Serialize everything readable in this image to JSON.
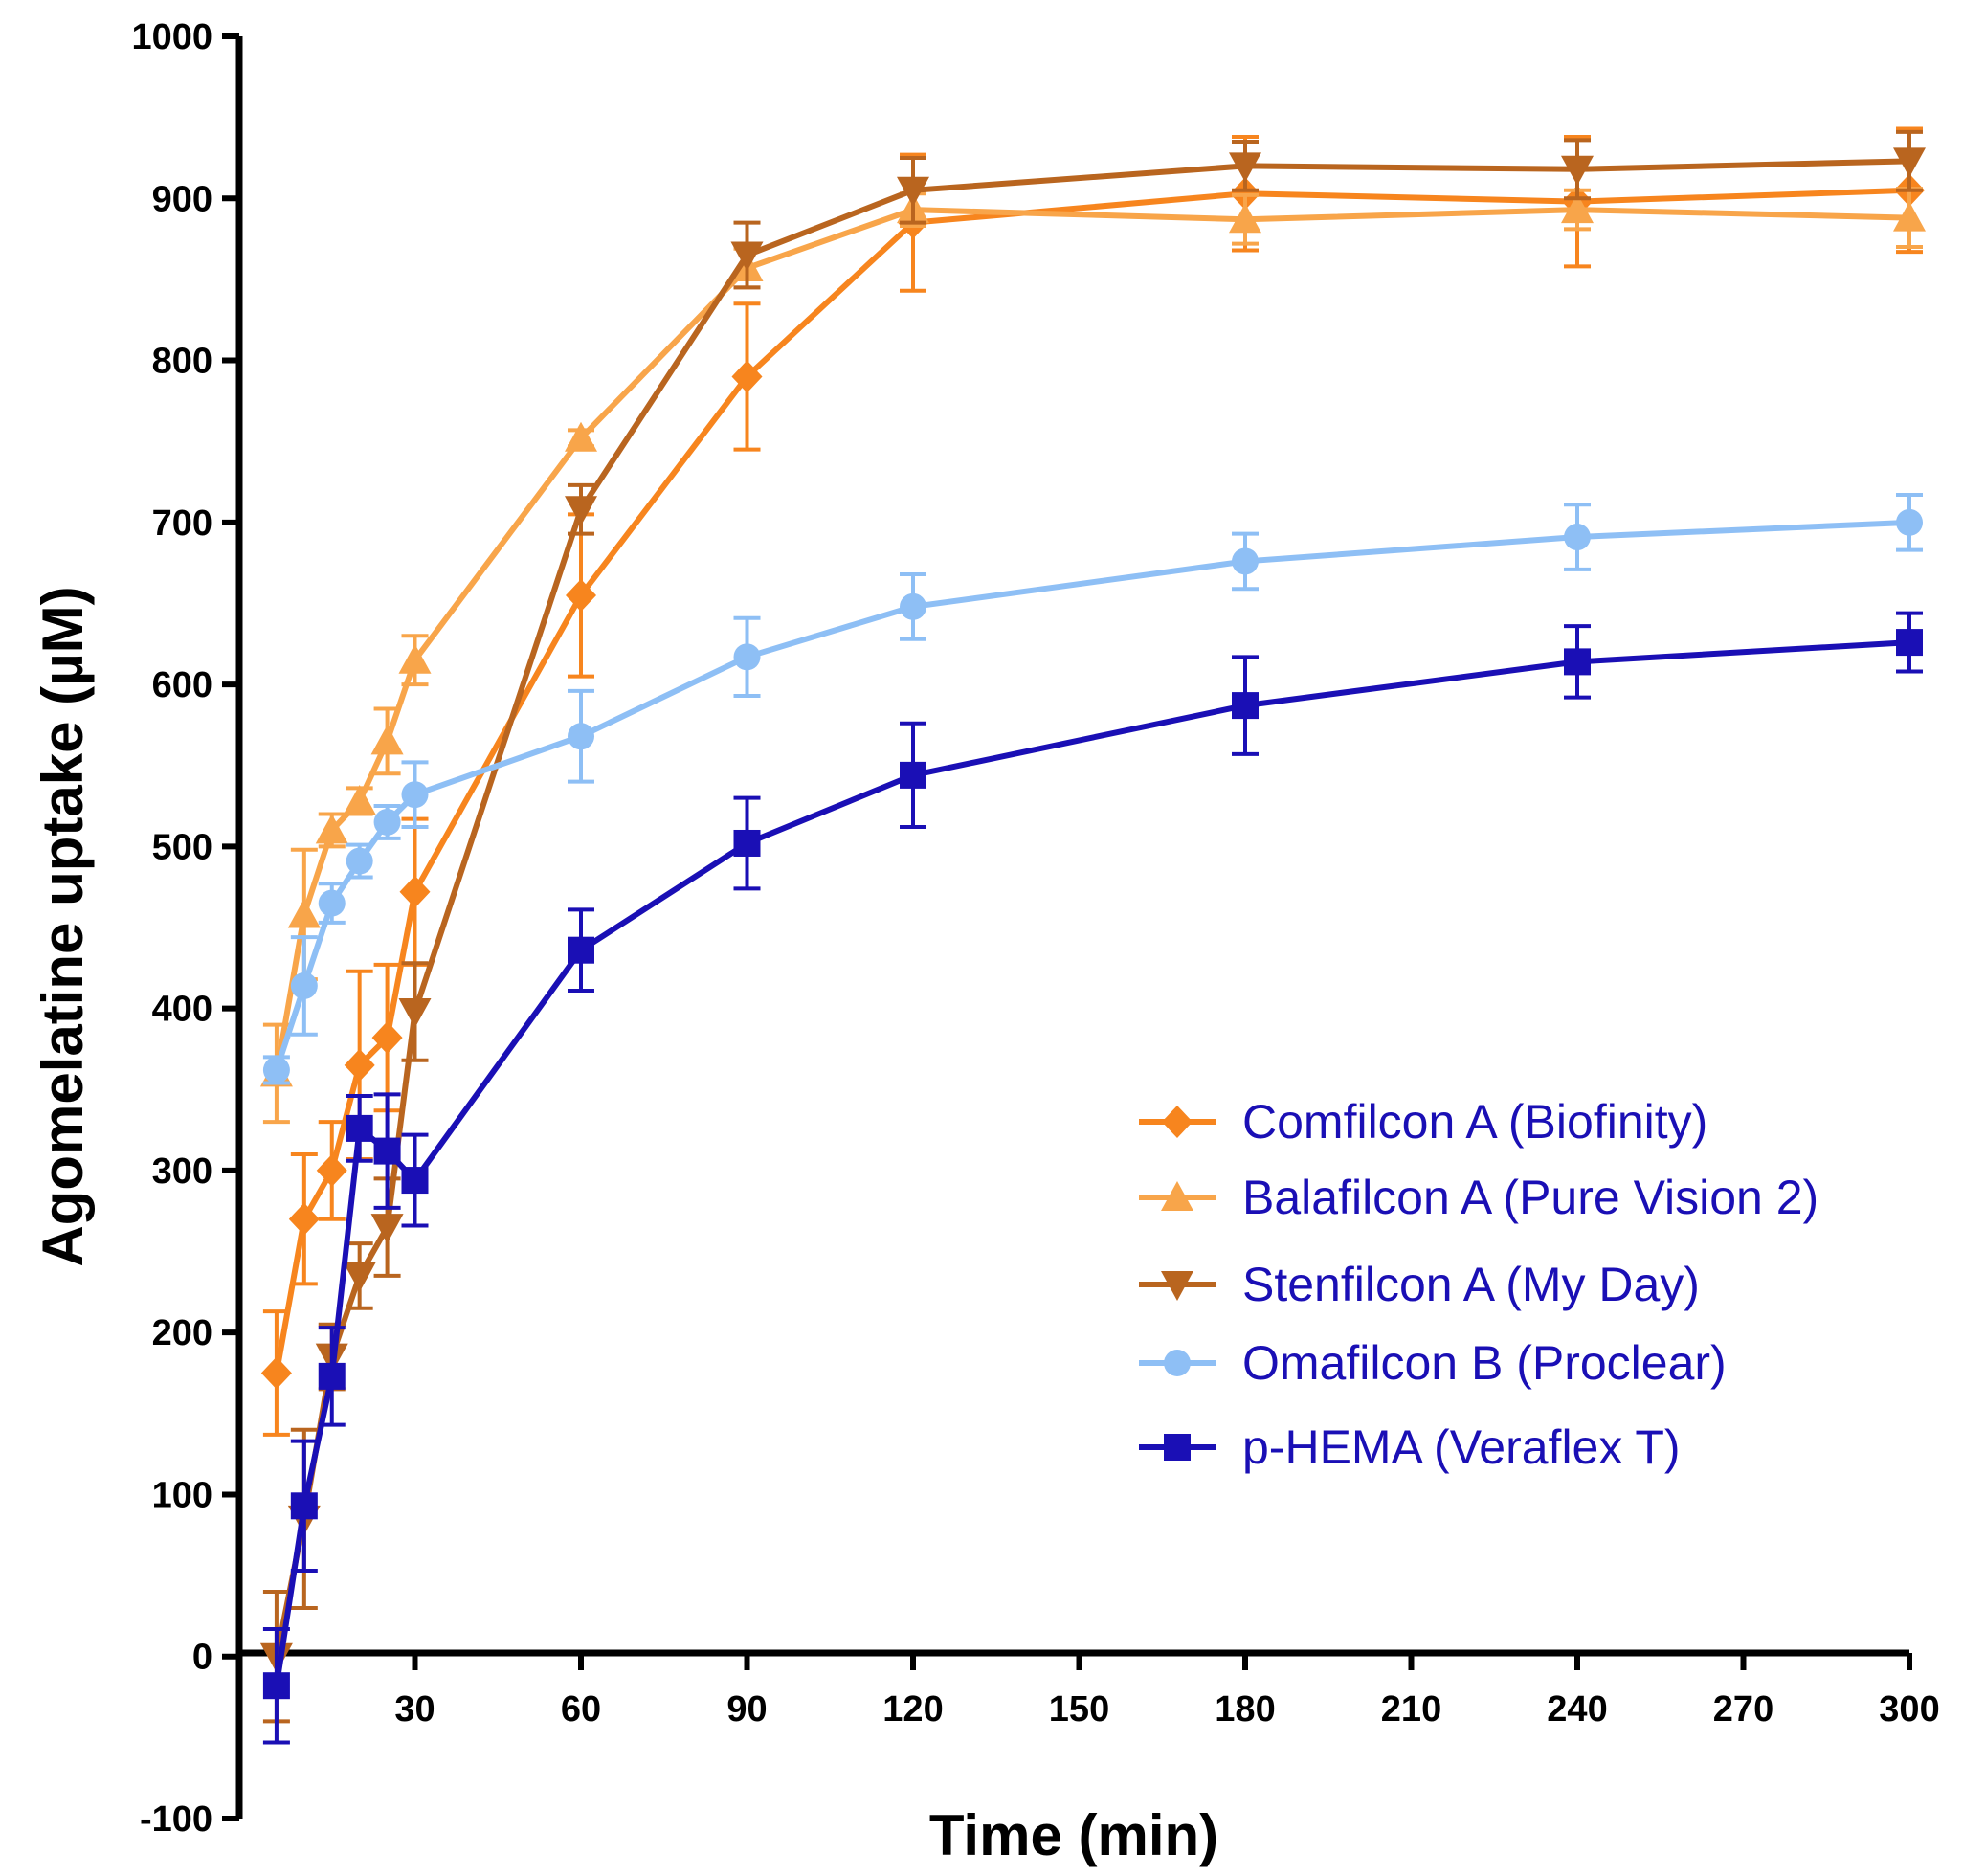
{
  "chart_data": {
    "type": "line",
    "title": "",
    "xlabel": "Time (min)",
    "ylabel": "Agomelatine uptake (µM)",
    "xlim": [
      0,
      300
    ],
    "ylim": [
      -100,
      1000
    ],
    "x_ticks": [
      30,
      60,
      90,
      120,
      150,
      180,
      210,
      240,
      270,
      300
    ],
    "y_ticks": [
      -100,
      0,
      100,
      200,
      300,
      400,
      500,
      600,
      700,
      800,
      900,
      1000
    ],
    "legend_position": "lower-right",
    "grid": false,
    "series": [
      {
        "name": "Comfilcon A (Biofinity)",
        "color": "#F7851E",
        "marker": "diamond",
        "x": [
          5,
          10,
          15,
          20,
          25,
          30,
          60,
          90,
          120,
          180,
          240,
          300
        ],
        "y": [
          175,
          270,
          300,
          365,
          382,
          472,
          655,
          790,
          885,
          903,
          898,
          905
        ],
        "error": [
          38,
          40,
          30,
          58,
          45,
          45,
          50,
          45,
          42,
          35,
          40,
          38
        ]
      },
      {
        "name": "Balafilcon A (Pure Vision 2)",
        "color": "#F8A54A",
        "marker": "triangle-up",
        "x": [
          5,
          10,
          15,
          20,
          25,
          30,
          60,
          90,
          120,
          180,
          240,
          300
        ],
        "y": [
          360,
          458,
          510,
          528,
          565,
          615,
          752,
          857,
          893,
          887,
          893,
          888
        ],
        "error": [
          30,
          40,
          10,
          8,
          20,
          15,
          5,
          12,
          10,
          15,
          12,
          18
        ]
      },
      {
        "name": "Stenfilcon A (My Day)",
        "color": "#B9651F",
        "marker": "triangle-down",
        "x": [
          5,
          10,
          15,
          20,
          25,
          30,
          60,
          90,
          120,
          180,
          240,
          300
        ],
        "y": [
          0,
          85,
          185,
          235,
          265,
          398,
          708,
          865,
          905,
          920,
          918,
          923
        ],
        "error": [
          40,
          55,
          20,
          20,
          30,
          30,
          15,
          20,
          20,
          15,
          18,
          18
        ]
      },
      {
        "name": "Omafilcon B (Proclear)",
        "color": "#8EBFF5",
        "marker": "circle",
        "x": [
          5,
          10,
          15,
          20,
          25,
          30,
          60,
          90,
          120,
          180,
          240,
          300
        ],
        "y": [
          362,
          414,
          465,
          491,
          515,
          532,
          568,
          617,
          648,
          676,
          691,
          700
        ],
        "error": [
          8,
          30,
          12,
          10,
          10,
          20,
          28,
          24,
          20,
          17,
          20,
          17
        ]
      },
      {
        "name": "p-HEMA (Veraflex T)",
        "color": "#1A0FB5",
        "marker": "square",
        "x": [
          5,
          10,
          15,
          20,
          25,
          30,
          60,
          90,
          120,
          180,
          240,
          300
        ],
        "y": [
          -18,
          93,
          173,
          326,
          312,
          294,
          436,
          502,
          544,
          587,
          614,
          626
        ],
        "error": [
          35,
          40,
          30,
          20,
          35,
          28,
          25,
          28,
          32,
          30,
          22,
          18
        ]
      }
    ]
  }
}
